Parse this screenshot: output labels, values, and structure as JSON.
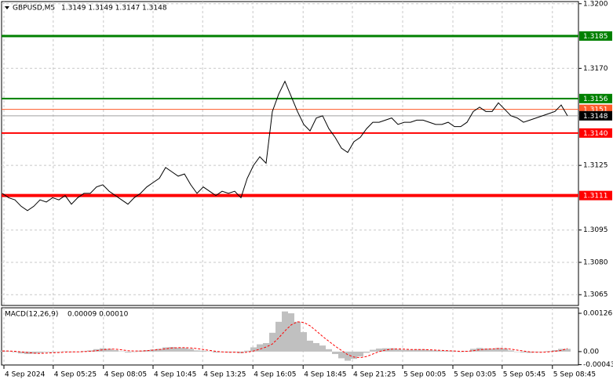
{
  "chart_data": [
    {
      "type": "line",
      "title": "GBPUSD,M5",
      "subtitle": "1.3149 1.3149 1.3147 1.3148",
      "series": [
        {
          "color": "#000000",
          "values": [
            1.3112,
            1.311,
            1.3109,
            1.3106,
            1.3104,
            1.3106,
            1.3109,
            1.3108,
            1.311,
            1.3109,
            1.3111,
            1.3107,
            1.311,
            1.3112,
            1.3112,
            1.3115,
            1.3116,
            1.3113,
            1.3111,
            1.3109,
            1.3107,
            1.311,
            1.3112,
            1.3115,
            1.3117,
            1.3119,
            1.3124,
            1.3122,
            1.312,
            1.3121,
            1.3116,
            1.3112,
            1.3115,
            1.3113,
            1.3111,
            1.3113,
            1.3112,
            1.3113,
            1.311,
            1.3119,
            1.3125,
            1.3129,
            1.3126,
            1.315,
            1.3158,
            1.3164,
            1.3157,
            1.315,
            1.3144,
            1.3141,
            1.3147,
            1.3148,
            1.3142,
            1.3138,
            1.3133,
            1.3131,
            1.3136,
            1.3138,
            1.3142,
            1.3145,
            1.3145,
            1.3146,
            1.3147,
            1.3144,
            1.3145,
            1.3145,
            1.3146,
            1.3146,
            1.3145,
            1.3144,
            1.3144,
            1.3145,
            1.3143,
            1.3143,
            1.3145,
            1.315,
            1.3152,
            1.315,
            1.315,
            1.3154,
            1.3151,
            1.3148,
            1.3147,
            1.3145,
            1.3146,
            1.3147,
            1.3148,
            1.3149,
            1.315,
            1.3153,
            1.3148
          ]
        }
      ],
      "levels": [
        {
          "value": 1.3185,
          "label": "1.3185",
          "color": "#008000"
        },
        {
          "value": 1.3156,
          "label": "1.3156",
          "color": "#008000"
        },
        {
          "value": 1.3151,
          "label": "1.3151",
          "color": "#ff5a28"
        },
        {
          "value": 1.3148,
          "label": "1.3148",
          "color": "#000000"
        },
        {
          "value": 1.314,
          "label": "1.3140",
          "color": "#ff0000"
        },
        {
          "value": 1.3111,
          "label": "1.3111",
          "color": "#ff0000"
        }
      ],
      "xlim": [
        0,
        91.75
      ],
      "ylim": [
        1.306,
        1.3201
      ],
      "yticks": [
        {
          "value": 1.32,
          "label": "1.3200"
        },
        {
          "value": 1.317,
          "label": "1.3170"
        },
        1.3125,
        1.3095,
        {
          "value": 1.308,
          "label": "1.3080"
        },
        1.3065
      ],
      "xticks": [
        {
          "value": 0.25,
          "label": "4 Sep 2024"
        },
        {
          "value": 8.1,
          "label": "4 Sep 05:25"
        },
        {
          "value": 16.1,
          "label": "4 Sep 08:05"
        },
        {
          "value": 24,
          "label": "4 Sep 10:45"
        },
        {
          "value": 31.9,
          "label": "4 Sep 13:25"
        },
        {
          "value": 39.9,
          "label": "4 Sep 16:05"
        },
        {
          "value": 47.9,
          "label": "4 Sep 18:45"
        },
        {
          "value": 55.75,
          "label": "4 Sep 21:25"
        },
        {
          "value": 63.75,
          "label": "5 Sep 00:05"
        },
        {
          "value": 71.75,
          "label": "5 Sep 03:05"
        },
        {
          "value": 79.6,
          "label": "5 Sep 05:45"
        },
        {
          "value": 87.6,
          "label": "5 Sep 08:45"
        }
      ],
      "grid": true
    },
    {
      "type": "macd",
      "title": "MACD(12,26,9)",
      "subtitle": "0.00009 0.00010",
      "series": [
        {
          "color": "#c0c0c0",
          "values": [
            3e-05,
            2e-05,
            -2e-05,
            -6e-05,
            -8e-05,
            -7e-05,
            -4e-05,
            -2e-05,
            -2e-05,
            -1e-05,
            1e-05,
            -2e-05,
            -1e-05,
            2e-05,
            4e-05,
            8e-05,
            0.00011,
            9e-05,
            5e-05,
            1e-05,
            -3e-05,
            0,
            3e-05,
            5e-05,
            7e-05,
            9e-05,
            0.00014,
            0.00015,
            0.00013,
            0.00012,
            9e-05,
            4e-05,
            3e-05,
            1e-05,
            -3e-05,
            -2e-05,
            -3e-05,
            -2e-05,
            -5e-05,
            3e-05,
            0.00014,
            0.00024,
            0.00028,
            0.00062,
            0.00098,
            0.00132,
            0.00126,
            0.00098,
            0.00064,
            0.00036,
            0.00028,
            0.0002,
            8e-05,
            -8e-05,
            -0.00022,
            -0.0003,
            -0.00024,
            -0.00016,
            -4e-05,
            6e-05,
            0.0001,
            0.00011,
            0.00011,
            8e-05,
            6e-05,
            6e-05,
            7e-05,
            7e-05,
            5e-05,
            4e-05,
            3e-05,
            3e-05,
            1e-05,
            0,
            2e-05,
            9e-05,
            0.00012,
            0.0001,
            9e-05,
            0.00012,
            0.0001,
            4e-05,
            0,
            -3e-05,
            -4e-05,
            -2e-05,
            0,
            2e-05,
            5e-05,
            9e-05,
            9e-05
          ]
        },
        {
          "color": "#ff0000",
          "values": [
            2e-05,
            2e-05,
            1e-05,
            -1e-05,
            -3e-05,
            -5e-05,
            -6e-05,
            -5e-05,
            -4e-05,
            -3e-05,
            -2e-05,
            -1e-05,
            -1e-05,
            0,
            1e-05,
            3e-05,
            6e-05,
            8e-05,
            8e-05,
            6e-05,
            3e-05,
            2e-05,
            2e-05,
            3e-05,
            5e-05,
            7e-05,
            9e-05,
            0.00012,
            0.00013,
            0.00013,
            0.00012,
            0.0001,
            7e-05,
            4e-05,
            1e-05,
            -1e-05,
            -2e-05,
            -2e-05,
            -3e-05,
            -2e-05,
            2e-05,
            8e-05,
            0.00015,
            0.00025,
            0.00045,
            0.00068,
            0.00088,
            0.00098,
            0.00096,
            0.00085,
            0.00068,
            0.0005,
            0.00034,
            0.00018,
            4e-05,
            -0.0001,
            -0.00018,
            -0.0002,
            -0.00016,
            -8e-05,
            0,
            5e-05,
            8e-05,
            9e-05,
            8e-05,
            7e-05,
            7e-05,
            7e-05,
            6e-05,
            5e-05,
            4e-05,
            3e-05,
            2e-05,
            1e-05,
            1e-05,
            3e-05,
            6e-05,
            8e-05,
            9e-05,
            0.0001,
            0.0001,
            8e-05,
            5e-05,
            2e-05,
            -1e-05,
            -2e-05,
            -2e-05,
            -1e-05,
            1e-05,
            4e-05,
            0.0001
          ]
        }
      ],
      "xlim": [
        0,
        91.75
      ],
      "ylim": [
        -0.00044,
        0.00144
      ],
      "yticks": [
        0.00126,
        {
          "value": 0,
          "label": "0.00"
        },
        -0.00043
      ]
    }
  ]
}
